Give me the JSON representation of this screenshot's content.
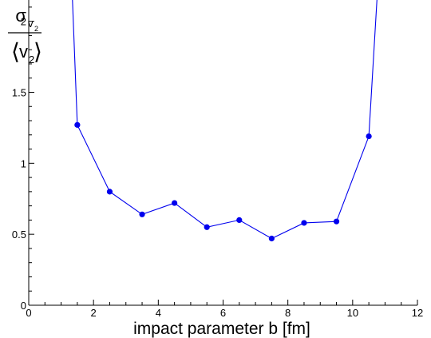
{
  "chart_data": {
    "type": "line",
    "title": "",
    "xlabel": "impact parameter b [fm]",
    "ylabel": {
      "numerator": "σ",
      "numerator_sub": "v",
      "numerator_subsub": "2",
      "denominator_left": "⟨",
      "denominator": "v",
      "denominator_sub": "2",
      "denominator_right": "⟩"
    },
    "xlim": [
      0,
      12
    ],
    "ylim": [
      0,
      2.15
    ],
    "xticks": [
      0,
      2,
      4,
      6,
      8,
      10,
      12
    ],
    "yticks": [
      0,
      0.5,
      1,
      1.5,
      2
    ],
    "xtick_labels": [
      "0",
      "2",
      "4",
      "6",
      "8",
      "10",
      "12"
    ],
    "ytick_labels": [
      "0",
      "0.5",
      "1",
      "1.5",
      "2"
    ],
    "grid": false,
    "series": [
      {
        "color": "#0000ee",
        "x": [
          1.5,
          2.5,
          3.5,
          4.5,
          5.5,
          6.5,
          7.5,
          8.5,
          9.5,
          10.5
        ],
        "y": [
          1.27,
          0.8,
          0.64,
          0.72,
          0.55,
          0.6,
          0.47,
          0.58,
          0.59,
          1.19
        ],
        "line_extends_above_range": {
          "left": [
            1.35,
            2.15
          ],
          "right": [
            10.75,
            2.15
          ]
        }
      }
    ]
  }
}
